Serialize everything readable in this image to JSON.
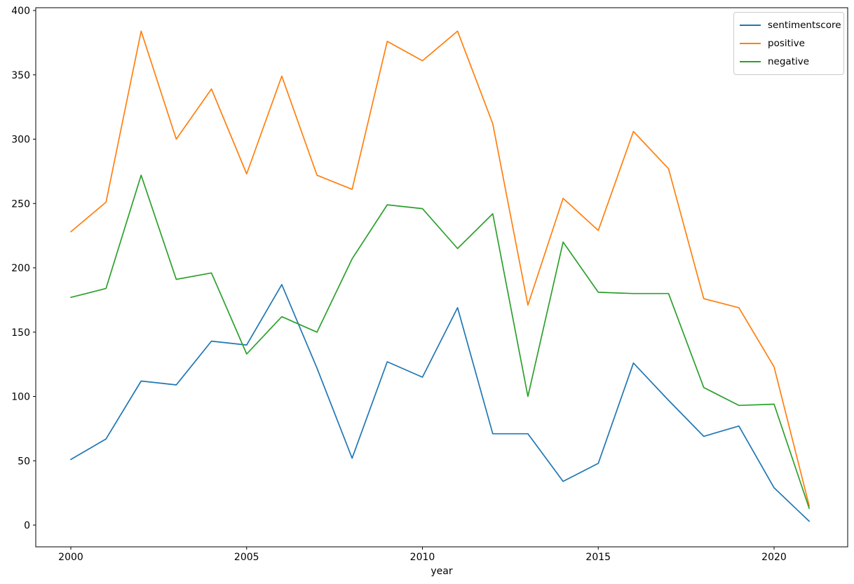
{
  "figure": {
    "background": "#ffffff",
    "axis_color": "#000000",
    "tick_label_color": "#000000"
  },
  "chart_data": {
    "type": "line",
    "title": "",
    "xlabel": "year",
    "ylabel": "",
    "grid": false,
    "legend_position": "upper right",
    "xlim": [
      1998.95,
      2022.05
    ],
    "ylim": [
      0,
      400
    ],
    "xticks": [
      2000,
      2005,
      2010,
      2015,
      2020
    ],
    "yticks": [
      0,
      50,
      100,
      150,
      200,
      250,
      300,
      350,
      400
    ],
    "x": [
      2000,
      2001,
      2002,
      2003,
      2004,
      2005,
      2006,
      2007,
      2008,
      2009,
      2010,
      2011,
      2012,
      2013,
      2014,
      2015,
      2016,
      2017,
      2018,
      2019,
      2020,
      2021
    ],
    "series": [
      {
        "name": "sentimentscore",
        "color": "#1f77b4",
        "values": [
          51,
          67,
          112,
          109,
          143,
          140,
          187,
          122,
          52,
          127,
          115,
          169,
          71,
          71,
          34,
          48,
          126,
          97,
          69,
          77,
          29,
          3
        ]
      },
      {
        "name": "positive",
        "color": "#ff7f0e",
        "values": [
          228,
          251,
          384,
          300,
          339,
          273,
          349,
          272,
          261,
          376,
          361,
          384,
          312,
          171,
          254,
          229,
          306,
          277,
          176,
          169,
          123,
          15
        ]
      },
      {
        "name": "negative",
        "color": "#2ca02c",
        "values": [
          177,
          184,
          272,
          191,
          196,
          133,
          162,
          150,
          207,
          249,
          246,
          215,
          242,
          100,
          220,
          181,
          180,
          180,
          107,
          93,
          94,
          13
        ]
      }
    ]
  }
}
